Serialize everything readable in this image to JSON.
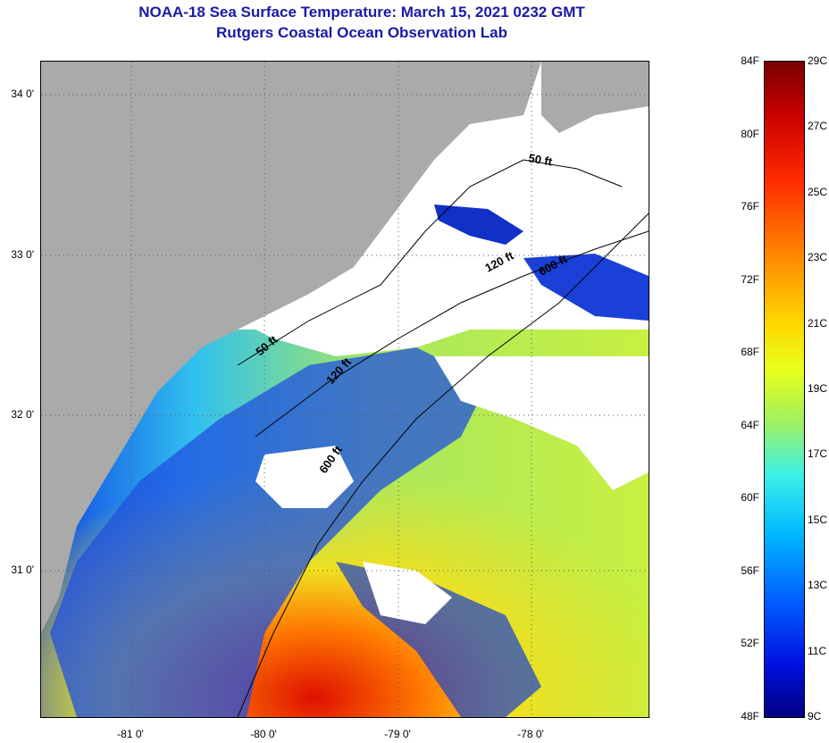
{
  "title": "NOAA-18 Sea Surface Temperature:  March 15, 2021 0232 GMT",
  "subtitle": "Rutgers Coastal Ocean Observation Lab",
  "lat_labels": [
    "34 0'",
    "33 0'",
    "32 0'",
    "31 0'"
  ],
  "lon_labels": [
    "-81 0'",
    "-80 0'",
    "-79 0'",
    "-78 0'"
  ],
  "isobath_labels": [
    "50 ft",
    "120 ft",
    "600 ft",
    "50 ft",
    "120 ft",
    "600 ft"
  ],
  "colorbar": {
    "fahrenheit": [
      "84F",
      "80F",
      "76F",
      "72F",
      "68F",
      "64F",
      "60F",
      "56F",
      "52F",
      "48F"
    ],
    "celsius": [
      "29C",
      "27C",
      "25C",
      "23C",
      "21C",
      "19C",
      "17C",
      "15C",
      "13C",
      "11C",
      "9C"
    ]
  },
  "colors": {
    "title": "#1a1aa6",
    "land": "#aaaaaa",
    "cloud": "#ffffff"
  }
}
